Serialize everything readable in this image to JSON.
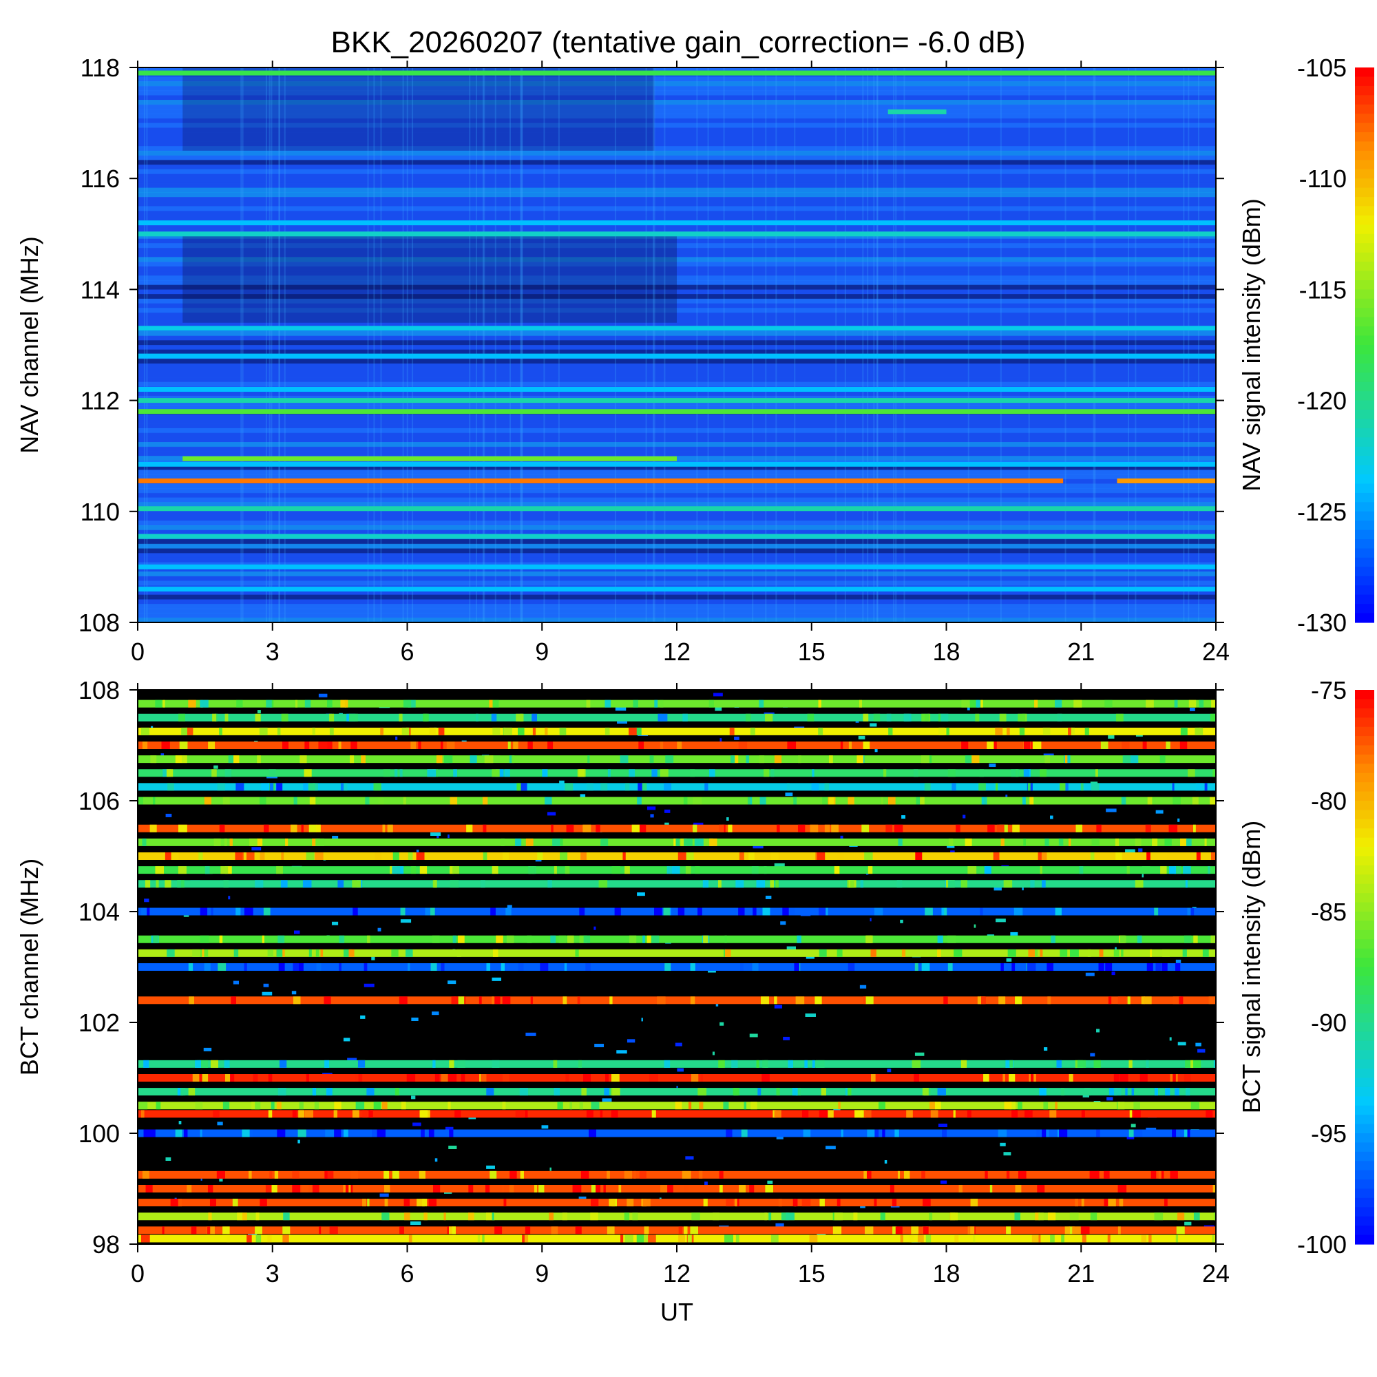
{
  "title": "BKK_20260207 (tentative gain_correction= -6.0 dB)",
  "chart_data": [
    {
      "type": "heatmap",
      "name": "NAV",
      "xlabel": "UT",
      "ylabel": "NAV channel (MHz)",
      "colorbar_label": "NAV signal intensity (dBm)",
      "xlim": [
        0,
        24
      ],
      "ylim": [
        108,
        118
      ],
      "x_ticks": [
        "0",
        "3",
        "6",
        "9",
        "12",
        "15",
        "18",
        "21",
        "24"
      ],
      "y_ticks": [
        "108",
        "110",
        "112",
        "114",
        "116",
        "118"
      ],
      "color_range": [
        -130,
        -105
      ],
      "colorbar_ticks": [
        "-105",
        "-110",
        "-115",
        "-120",
        "-125",
        "-130"
      ],
      "bands": [
        {
          "freq": 117.9,
          "level": -118,
          "start": 0,
          "end": 24
        },
        {
          "freq": 117.2,
          "level": -121,
          "start": 16.7,
          "end": 18.0
        },
        {
          "freq": 115.2,
          "level": -124,
          "start": 0,
          "end": 24
        },
        {
          "freq": 115.0,
          "level": -122,
          "start": 0,
          "end": 24
        },
        {
          "freq": 113.3,
          "level": -123,
          "start": 0,
          "end": 24
        },
        {
          "freq": 112.8,
          "level": -124,
          "start": 0,
          "end": 24
        },
        {
          "freq": 112.2,
          "level": -124,
          "start": 0,
          "end": 24
        },
        {
          "freq": 112.0,
          "level": -121,
          "start": 0,
          "end": 24
        },
        {
          "freq": 111.8,
          "level": -117,
          "start": 0,
          "end": 24
        },
        {
          "freq": 110.95,
          "level": -116,
          "start": 1,
          "end": 12
        },
        {
          "freq": 110.85,
          "level": -124,
          "start": 0,
          "end": 24
        },
        {
          "freq": 110.55,
          "level": -108,
          "start": 0,
          "end": 20.6
        },
        {
          "freq": 110.55,
          "level": -109,
          "start": 21.8,
          "end": 24
        },
        {
          "freq": 110.05,
          "level": -121,
          "start": 0,
          "end": 24
        },
        {
          "freq": 109.55,
          "level": -122,
          "start": 0,
          "end": 24
        },
        {
          "freq": 109.0,
          "level": -124,
          "start": 0,
          "end": 24
        },
        {
          "freq": 108.6,
          "level": -124,
          "start": 0,
          "end": 24
        }
      ]
    },
    {
      "type": "heatmap",
      "name": "BCT",
      "xlabel": "UT",
      "ylabel": "BCT channel (MHz)",
      "colorbar_label": "BCT signal intensity (dBm)",
      "xlim": [
        0,
        24
      ],
      "ylim": [
        98,
        108
      ],
      "x_ticks": [
        "0",
        "3",
        "6",
        "9",
        "12",
        "15",
        "18",
        "21",
        "24"
      ],
      "y_ticks": [
        "98",
        "100",
        "102",
        "104",
        "106",
        "108"
      ],
      "color_range": [
        -100,
        -75
      ],
      "colorbar_ticks": [
        "-75",
        "-80",
        "-85",
        "-90",
        "-95",
        "-100"
      ],
      "bands": [
        {
          "freq": 107.75,
          "level": -86,
          "start": 0,
          "end": 24
        },
        {
          "freq": 107.5,
          "level": -90,
          "start": 0,
          "end": 24
        },
        {
          "freq": 107.25,
          "level": -82,
          "start": 0,
          "end": 24
        },
        {
          "freq": 107.0,
          "level": -77,
          "start": 0,
          "end": 24
        },
        {
          "freq": 106.75,
          "level": -86,
          "start": 0,
          "end": 24
        },
        {
          "freq": 106.5,
          "level": -89,
          "start": 0,
          "end": 24
        },
        {
          "freq": 106.25,
          "level": -93,
          "start": 0,
          "end": 24
        },
        {
          "freq": 106.0,
          "level": -86,
          "start": 0,
          "end": 24
        },
        {
          "freq": 105.5,
          "level": -77,
          "start": 0,
          "end": 24
        },
        {
          "freq": 105.25,
          "level": -86,
          "start": 0,
          "end": 24
        },
        {
          "freq": 105.0,
          "level": -81,
          "start": 0,
          "end": 24
        },
        {
          "freq": 104.75,
          "level": -88,
          "start": 0,
          "end": 24
        },
        {
          "freq": 104.5,
          "level": -90,
          "start": 0,
          "end": 24
        },
        {
          "freq": 104.0,
          "level": -97,
          "start": 0,
          "end": 24
        },
        {
          "freq": 103.5,
          "level": -87,
          "start": 0,
          "end": 24
        },
        {
          "freq": 103.25,
          "level": -84,
          "start": 0,
          "end": 24
        },
        {
          "freq": 103.0,
          "level": -97,
          "start": 0,
          "end": 24
        },
        {
          "freq": 102.4,
          "level": -77,
          "start": 0,
          "end": 24
        },
        {
          "freq": 101.25,
          "level": -90,
          "start": 0,
          "end": 24
        },
        {
          "freq": 101.0,
          "level": -76,
          "start": 0,
          "end": 24
        },
        {
          "freq": 100.75,
          "level": -90,
          "start": 0,
          "end": 24
        },
        {
          "freq": 100.5,
          "level": -84,
          "start": 0,
          "end": 24
        },
        {
          "freq": 100.35,
          "level": -76,
          "start": 0,
          "end": 24
        },
        {
          "freq": 100.0,
          "level": -97,
          "start": 0,
          "end": 24
        },
        {
          "freq": 99.25,
          "level": -77,
          "start": 0,
          "end": 24
        },
        {
          "freq": 99.0,
          "level": -77,
          "start": 0,
          "end": 24
        },
        {
          "freq": 98.75,
          "level": -77,
          "start": 0,
          "end": 24
        },
        {
          "freq": 98.5,
          "level": -84,
          "start": 0,
          "end": 24
        },
        {
          "freq": 98.25,
          "level": -77,
          "start": 0,
          "end": 24
        },
        {
          "freq": 98.1,
          "level": -82,
          "start": 0,
          "end": 24
        }
      ]
    }
  ]
}
